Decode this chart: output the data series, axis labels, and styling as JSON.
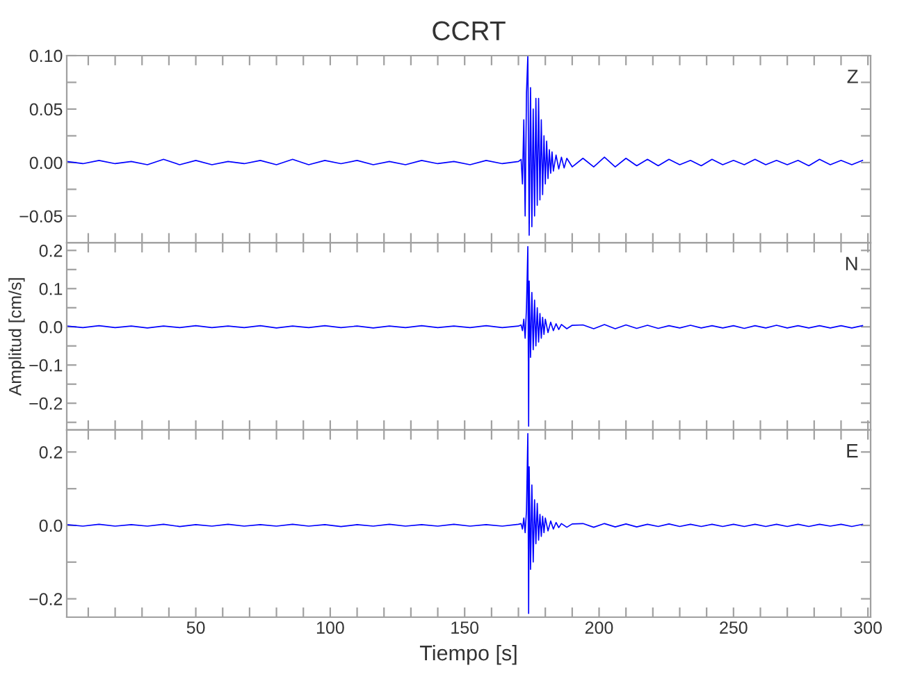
{
  "chart_data": [
    {
      "type": "line",
      "title": "CCRT",
      "annotations": [
        "Z"
      ],
      "tick_labels": "y",
      "grid": false,
      "xlim": [
        2,
        301
      ],
      "ylim": [
        -0.075,
        0.1
      ],
      "xticks": [
        {
          "value": 10,
          "label": null
        },
        {
          "value": 20,
          "label": null
        },
        {
          "value": 30,
          "label": null
        },
        {
          "value": 40,
          "label": null
        },
        {
          "value": 50,
          "label": null
        },
        {
          "value": 60,
          "label": null
        },
        {
          "value": 70,
          "label": null
        },
        {
          "value": 80,
          "label": null
        },
        {
          "value": 90,
          "label": null
        },
        {
          "value": 100,
          "label": null
        },
        {
          "value": 110,
          "label": null
        },
        {
          "value": 120,
          "label": null
        },
        {
          "value": 130,
          "label": null
        },
        {
          "value": 140,
          "label": null
        },
        {
          "value": 150,
          "label": null
        },
        {
          "value": 160,
          "label": null
        },
        {
          "value": 170,
          "label": null
        },
        {
          "value": 180,
          "label": null
        },
        {
          "value": 190,
          "label": null
        },
        {
          "value": 200,
          "label": null
        },
        {
          "value": 210,
          "label": null
        },
        {
          "value": 220,
          "label": null
        },
        {
          "value": 230,
          "label": null
        },
        {
          "value": 240,
          "label": null
        },
        {
          "value": 250,
          "label": null
        },
        {
          "value": 260,
          "label": null
        },
        {
          "value": 270,
          "label": null
        },
        {
          "value": 280,
          "label": null
        },
        {
          "value": 290,
          "label": null
        },
        {
          "value": 300,
          "label": null
        }
      ],
      "yticks": [
        {
          "value": -0.05,
          "label": "−0.05"
        },
        {
          "value": -0.025,
          "label": null
        },
        {
          "value": 0,
          "label": "0.00"
        },
        {
          "value": 0.025,
          "label": null
        },
        {
          "value": 0.05,
          "label": "0.05"
        },
        {
          "value": 0.075,
          "label": null
        },
        {
          "value": 0.1,
          "label": "0.10"
        }
      ],
      "series": [
        {
          "color": "#0000ff",
          "x": [
            2,
            8,
            14,
            20,
            26,
            32,
            38,
            44,
            50,
            56,
            62,
            68,
            74,
            80,
            86,
            92,
            98,
            104,
            110,
            116,
            122,
            128,
            134,
            140,
            146,
            152,
            158,
            164,
            170,
            171,
            171.5,
            172,
            172.5,
            173,
            173.5,
            174,
            174.5,
            175,
            175.5,
            176,
            176.5,
            177,
            177.5,
            178,
            178.5,
            179,
            179.5,
            180,
            180.5,
            181,
            181.5,
            182,
            182.5,
            183,
            184,
            185,
            186,
            187,
            188,
            190,
            194,
            198,
            202,
            206,
            210,
            214,
            218,
            222,
            226,
            230,
            234,
            238,
            242,
            246,
            250,
            254,
            258,
            262,
            266,
            270,
            274,
            278,
            282,
            286,
            290,
            294,
            298
          ],
          "values": [
            0.001,
            -0.001,
            0.002,
            -0.001,
            0.001,
            -0.002,
            0.003,
            -0.002,
            0.002,
            -0.002,
            0.001,
            -0.001,
            0.002,
            -0.002,
            0.003,
            -0.002,
            0.002,
            -0.001,
            0.002,
            -0.002,
            0.001,
            -0.002,
            0.002,
            -0.001,
            0.001,
            -0.002,
            0.002,
            -0.001,
            0.001,
            0.003,
            -0.02,
            0.04,
            -0.05,
            0.065,
            0.1,
            -0.068,
            0.07,
            -0.06,
            0.05,
            -0.05,
            0.06,
            -0.04,
            0.06,
            -0.035,
            0.04,
            -0.03,
            0.025,
            -0.02,
            0.02,
            -0.015,
            0.012,
            -0.01,
            0.01,
            -0.008,
            0.007,
            -0.006,
            0.005,
            -0.005,
            0.004,
            -0.004,
            0.004,
            -0.004,
            0.005,
            -0.004,
            0.004,
            -0.003,
            0.003,
            -0.003,
            0.003,
            -0.002,
            0.002,
            -0.003,
            0.003,
            -0.002,
            0.002,
            -0.002,
            0.003,
            -0.002,
            0.002,
            -0.002,
            0.002,
            -0.003,
            0.003,
            -0.002,
            0.002,
            -0.002,
            0.002
          ]
        }
      ]
    },
    {
      "type": "line",
      "ylabel": "Amplitud [cm/s]",
      "annotations": [
        "N"
      ],
      "tick_labels": "y",
      "grid": false,
      "xlim": [
        2,
        301
      ],
      "ylim": [
        -0.27,
        0.22
      ],
      "xticks": [
        {
          "value": 10,
          "label": null
        },
        {
          "value": 20,
          "label": null
        },
        {
          "value": 30,
          "label": null
        },
        {
          "value": 40,
          "label": null
        },
        {
          "value": 50,
          "label": null
        },
        {
          "value": 60,
          "label": null
        },
        {
          "value": 70,
          "label": null
        },
        {
          "value": 80,
          "label": null
        },
        {
          "value": 90,
          "label": null
        },
        {
          "value": 100,
          "label": null
        },
        {
          "value": 110,
          "label": null
        },
        {
          "value": 120,
          "label": null
        },
        {
          "value": 130,
          "label": null
        },
        {
          "value": 140,
          "label": null
        },
        {
          "value": 150,
          "label": null
        },
        {
          "value": 160,
          "label": null
        },
        {
          "value": 170,
          "label": null
        },
        {
          "value": 180,
          "label": null
        },
        {
          "value": 190,
          "label": null
        },
        {
          "value": 200,
          "label": null
        },
        {
          "value": 210,
          "label": null
        },
        {
          "value": 220,
          "label": null
        },
        {
          "value": 230,
          "label": null
        },
        {
          "value": 240,
          "label": null
        },
        {
          "value": 250,
          "label": null
        },
        {
          "value": 260,
          "label": null
        },
        {
          "value": 270,
          "label": null
        },
        {
          "value": 280,
          "label": null
        },
        {
          "value": 290,
          "label": null
        },
        {
          "value": 300,
          "label": null
        }
      ],
      "yticks": [
        {
          "value": -0.25,
          "label": null
        },
        {
          "value": -0.2,
          "label": "−0.2"
        },
        {
          "value": -0.15,
          "label": null
        },
        {
          "value": -0.1,
          "label": "−0.1"
        },
        {
          "value": -0.05,
          "label": null
        },
        {
          "value": 0,
          "label": "0.0"
        },
        {
          "value": 0.05,
          "label": null
        },
        {
          "value": 0.1,
          "label": "0.1"
        },
        {
          "value": 0.15,
          "label": null
        },
        {
          "value": 0.2,
          "label": "0.2"
        }
      ],
      "series": [
        {
          "color": "#0000ff",
          "x": [
            2,
            8,
            14,
            20,
            26,
            32,
            38,
            44,
            50,
            56,
            62,
            68,
            74,
            80,
            86,
            92,
            98,
            104,
            110,
            116,
            122,
            128,
            134,
            140,
            146,
            152,
            158,
            164,
            170,
            171,
            171.5,
            172,
            172.5,
            173,
            173.5,
            173.8,
            174,
            174.5,
            175,
            175.5,
            176,
            176.5,
            177,
            177.5,
            178,
            178.5,
            179,
            179.5,
            180,
            181,
            182,
            183,
            184,
            185,
            186,
            188,
            190,
            194,
            198,
            202,
            206,
            210,
            214,
            218,
            222,
            226,
            230,
            234,
            238,
            242,
            246,
            250,
            254,
            258,
            262,
            266,
            270,
            274,
            278,
            282,
            286,
            290,
            294,
            298
          ],
          "values": [
            0.002,
            -0.002,
            0.003,
            -0.002,
            0.002,
            -0.003,
            0.002,
            -0.002,
            0.003,
            -0.002,
            0.002,
            -0.002,
            0.003,
            -0.003,
            0.002,
            -0.002,
            0.003,
            -0.002,
            0.002,
            -0.003,
            0.002,
            -0.002,
            0.003,
            -0.002,
            0.002,
            -0.002,
            0.003,
            -0.002,
            0.002,
            0.005,
            -0.01,
            0.02,
            -0.03,
            0.05,
            0.21,
            -0.26,
            0.12,
            -0.08,
            0.09,
            -0.06,
            0.07,
            -0.05,
            0.05,
            -0.04,
            0.035,
            -0.03,
            0.025,
            -0.02,
            0.02,
            -0.015,
            0.012,
            -0.01,
            0.008,
            -0.007,
            0.006,
            -0.005,
            0.004,
            0.005,
            -0.005,
            0.006,
            -0.005,
            0.005,
            -0.004,
            0.004,
            -0.004,
            0.003,
            -0.003,
            0.004,
            -0.003,
            0.003,
            -0.003,
            0.003,
            -0.004,
            0.003,
            -0.003,
            0.004,
            -0.003,
            0.003,
            -0.003,
            0.003,
            -0.003,
            0.003,
            -0.003,
            0.003
          ]
        }
      ]
    },
    {
      "type": "line",
      "xlabel": "Tiempo [s]",
      "annotations": [
        "E"
      ],
      "grid": false,
      "xlim": [
        2,
        301
      ],
      "ylim": [
        -0.25,
        0.26
      ],
      "xticks": [
        {
          "value": 10,
          "label": null
        },
        {
          "value": 20,
          "label": null
        },
        {
          "value": 30,
          "label": null
        },
        {
          "value": 40,
          "label": null
        },
        50,
        {
          "value": 60,
          "label": null
        },
        {
          "value": 70,
          "label": null
        },
        {
          "value": 80,
          "label": null
        },
        {
          "value": 90,
          "label": null
        },
        100,
        {
          "value": 110,
          "label": null
        },
        {
          "value": 120,
          "label": null
        },
        {
          "value": 130,
          "label": null
        },
        {
          "value": 140,
          "label": null
        },
        150,
        {
          "value": 160,
          "label": null
        },
        {
          "value": 170,
          "label": null
        },
        {
          "value": 180,
          "label": null
        },
        {
          "value": 190,
          "label": null
        },
        200,
        {
          "value": 210,
          "label": null
        },
        {
          "value": 220,
          "label": null
        },
        {
          "value": 230,
          "label": null
        },
        {
          "value": 240,
          "label": null
        },
        250,
        {
          "value": 260,
          "label": null
        },
        {
          "value": 270,
          "label": null
        },
        {
          "value": 280,
          "label": null
        },
        {
          "value": 290,
          "label": null
        },
        300
      ],
      "yticks": [
        {
          "value": -0.2,
          "label": "−0.2"
        },
        {
          "value": -0.1,
          "label": null
        },
        {
          "value": 0,
          "label": "0.0"
        },
        {
          "value": 0.1,
          "label": null
        },
        {
          "value": 0.2,
          "label": "0.2"
        }
      ],
      "series": [
        {
          "color": "#0000ff",
          "x": [
            2,
            8,
            14,
            20,
            26,
            32,
            38,
            44,
            50,
            56,
            62,
            68,
            74,
            80,
            86,
            92,
            98,
            104,
            110,
            116,
            122,
            128,
            134,
            140,
            146,
            152,
            158,
            164,
            170,
            171,
            171.5,
            172,
            172.5,
            173,
            173.5,
            173.8,
            174,
            174.5,
            175,
            175.5,
            176,
            176.5,
            177,
            177.5,
            178,
            178.5,
            179,
            179.5,
            180,
            181,
            182,
            183,
            184,
            185,
            186,
            188,
            190,
            194,
            198,
            202,
            206,
            210,
            214,
            218,
            222,
            226,
            230,
            234,
            238,
            242,
            246,
            250,
            254,
            258,
            262,
            266,
            270,
            274,
            278,
            282,
            286,
            290,
            294,
            298
          ],
          "values": [
            0.002,
            -0.002,
            0.003,
            -0.002,
            0.002,
            -0.002,
            0.003,
            -0.003,
            0.002,
            -0.002,
            0.003,
            -0.002,
            0.002,
            -0.002,
            0.003,
            -0.002,
            0.002,
            -0.003,
            0.002,
            -0.002,
            0.003,
            -0.002,
            0.002,
            -0.002,
            0.003,
            -0.002,
            0.002,
            -0.002,
            0.003,
            0.005,
            -0.01,
            0.02,
            -0.02,
            0.04,
            0.25,
            -0.24,
            0.16,
            -0.12,
            0.11,
            -0.1,
            0.07,
            -0.05,
            0.06,
            -0.04,
            0.03,
            -0.03,
            0.025,
            -0.02,
            0.02,
            -0.015,
            0.012,
            -0.01,
            0.008,
            -0.006,
            0.005,
            -0.005,
            0.004,
            0.005,
            -0.005,
            0.005,
            -0.004,
            0.004,
            -0.004,
            0.003,
            -0.003,
            0.004,
            -0.003,
            0.003,
            -0.003,
            0.003,
            -0.003,
            0.003,
            -0.003,
            0.003,
            -0.003,
            0.003,
            -0.003,
            0.003,
            -0.003,
            0.003,
            -0.002,
            0.003,
            -0.003,
            0.003
          ]
        }
      ]
    }
  ]
}
